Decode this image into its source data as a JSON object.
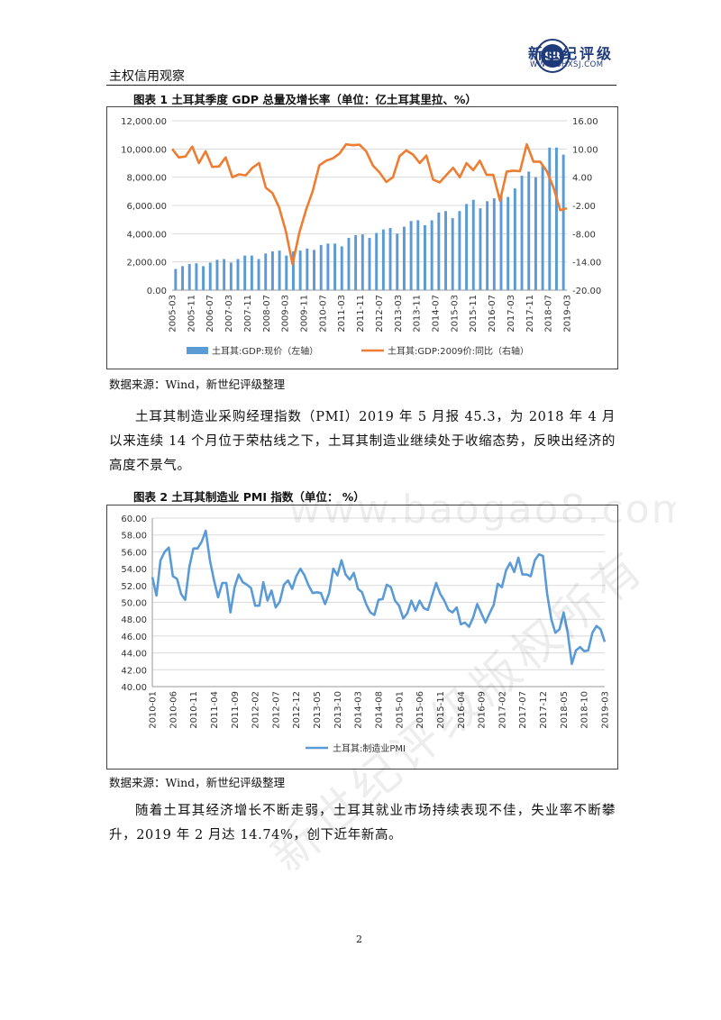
{
  "header": {
    "section_title": "主权信用观察",
    "logo_cn": "新世纪评级",
    "logo_url": "WWW.SHXSJ.COM",
    "logo_mark": "logo-emblem-SB"
  },
  "figures": [
    {
      "caption": "图表 1  土耳其季度 GDP 总量及增长率（单位：亿土耳其里拉、%）",
      "source": "数据来源：Wind，新世纪评级整理"
    },
    {
      "caption": "图表 2    土耳其制造业 PMI 指数（单位：  %）",
      "source": "数据来源：Wind，新世纪评级整理"
    }
  ],
  "paragraphs": [
    "土耳其制造业采购经理指数（PMI）2019 年 5 月报 45.3，为 2018 年 4 月以来连续 14 个月位于荣枯线之下，土耳其制造业继续处于收缩态势，反映出经济的高度不景气。",
    "随着土耳其经济增长不断走弱，土耳其就业市场持续表现不佳，失业率不断攀升，2019 年 2 月达 14.74%，创下近年新高。"
  ],
  "page_number": "2",
  "watermark": {
    "line1": "www.baogao8.com",
    "line2": "新世纪评级版权所有"
  },
  "colors": {
    "bar": "#5b9bd5",
    "line_orange": "#ed7d31",
    "line_blue": "#5b9bd5",
    "brand": "#1f3a78"
  },
  "chart_data": [
    {
      "type": "bar+line",
      "title": "",
      "x_tick_labels": [
        "2005-03",
        "2005-11",
        "2006-07",
        "2007-03",
        "2007-11",
        "2008-07",
        "2009-03",
        "2009-11",
        "2010-07",
        "2011-03",
        "2011-11",
        "2012-07",
        "2013-03",
        "2013-11",
        "2014-07",
        "2015-03",
        "2015-11",
        "2016-07",
        "2017-03",
        "2017-11",
        "2018-07",
        "2019-03"
      ],
      "left_axis": {
        "ylim": [
          0,
          12000
        ],
        "ticks": [
          "0.00",
          "2,000.00",
          "4,000.00",
          "6,000.00",
          "8,000.00",
          "10,000.00",
          "12,000.00"
        ]
      },
      "right_axis": {
        "ylim": [
          -20,
          16
        ],
        "ticks": [
          "-20.00",
          "-14.00",
          "-8.00",
          "-2.00",
          "4.00",
          "10.00",
          "16.00"
        ]
      },
      "series": [
        {
          "name": "土耳其:GDP:现价（左轴）",
          "type": "bar",
          "axis": "left",
          "values": [
            1500,
            1700,
            1850,
            1900,
            1700,
            1950,
            2150,
            2200,
            1950,
            2200,
            2450,
            2450,
            2200,
            2600,
            2750,
            2800,
            2450,
            2750,
            2800,
            2950,
            2850,
            3200,
            3300,
            3300,
            3100,
            3700,
            3900,
            3950,
            3700,
            4050,
            4300,
            4400,
            4000,
            4500,
            4900,
            4950,
            4600,
            4950,
            5500,
            5600,
            5100,
            5600,
            6100,
            6400,
            5800,
            6300,
            6500,
            6800,
            6600,
            7200,
            8100,
            8400,
            8000,
            8800,
            10100,
            10100,
            9600
          ]
        },
        {
          "name": "土耳其:GDP:2009价:同比（右轴）",
          "type": "line",
          "axis": "right",
          "values": [
            10.0,
            8.2,
            8.4,
            10.5,
            7.0,
            9.5,
            6.2,
            6.3,
            8.2,
            4.0,
            4.6,
            4.4,
            6.0,
            7.0,
            1.8,
            0.6,
            -2.5,
            -7.5,
            -14.5,
            -7.8,
            -3.0,
            1.0,
            6.5,
            7.5,
            8.0,
            9.0,
            11.0,
            10.8,
            10.9,
            9.5,
            6.5,
            5.0,
            3.0,
            4.0,
            8.5,
            9.7,
            8.8,
            7.0,
            8.6,
            3.5,
            2.9,
            4.5,
            6.0,
            4.0,
            7.0,
            5.5,
            7.5,
            4.5,
            4.5,
            -1.0,
            5.2,
            5.4,
            5.3,
            11.0,
            7.3,
            7.3,
            5.3,
            1.8,
            -3.0,
            -2.6
          ]
        }
      ],
      "grid": true,
      "legend": "bottom"
    },
    {
      "type": "line",
      "title": "",
      "x_tick_labels": [
        "2010-01",
        "2010-06",
        "2010-11",
        "2011-04",
        "2011-09",
        "2012-02",
        "2012-07",
        "2012-12",
        "2013-05",
        "2013-10",
        "2014-03",
        "2014-08",
        "2015-01",
        "2015-06",
        "2015-11",
        "2016-04",
        "2016-09",
        "2017-02",
        "2017-07",
        "2017-12",
        "2018-05",
        "2018-10",
        "2019-03"
      ],
      "ylim": [
        40,
        60
      ],
      "y_ticks": [
        "40.00",
        "42.00",
        "44.00",
        "46.00",
        "48.00",
        "50.00",
        "52.00",
        "54.00",
        "56.00",
        "58.00",
        "60.00"
      ],
      "series": [
        {
          "name": "土耳其:制造业PMI",
          "values": [
            53.0,
            50.8,
            55.0,
            56.0,
            56.5,
            53.1,
            52.8,
            51.0,
            50.3,
            54.2,
            56.4,
            56.4,
            57.2,
            58.5,
            55.0,
            52.6,
            50.6,
            52.3,
            52.3,
            48.8,
            51.8,
            53.3,
            52.4,
            52.1,
            51.7,
            49.6,
            49.6,
            52.4,
            50.2,
            51.4,
            49.4,
            50.1,
            52.1,
            52.6,
            51.6,
            53.1,
            54.0,
            53.2,
            52.0,
            51.1,
            51.2,
            51.1,
            49.8,
            51.1,
            54.0,
            53.2,
            55.0,
            53.3,
            52.7,
            53.5,
            51.6,
            51.2,
            49.8,
            48.8,
            48.5,
            50.3,
            50.4,
            52.1,
            51.8,
            50.2,
            49.6,
            48.1,
            48.7,
            50.2,
            49.0,
            50.2,
            49.3,
            49.1,
            50.7,
            52.3,
            51.0,
            50.2,
            49.1,
            48.8,
            49.4,
            47.4,
            47.6,
            47.1,
            48.2,
            49.8,
            48.7,
            47.6,
            48.7,
            49.7,
            52.2,
            51.8,
            53.8,
            54.7,
            53.6,
            55.3,
            53.3,
            53.3,
            53.1,
            55.0,
            55.7,
            55.5,
            51.0,
            48.0,
            46.4,
            46.8,
            48.8,
            46.4,
            42.7,
            44.3,
            44.7,
            44.2,
            44.3,
            46.4,
            47.2,
            46.8,
            45.3
          ]
        }
      ],
      "grid": true,
      "legend": "bottom"
    }
  ]
}
